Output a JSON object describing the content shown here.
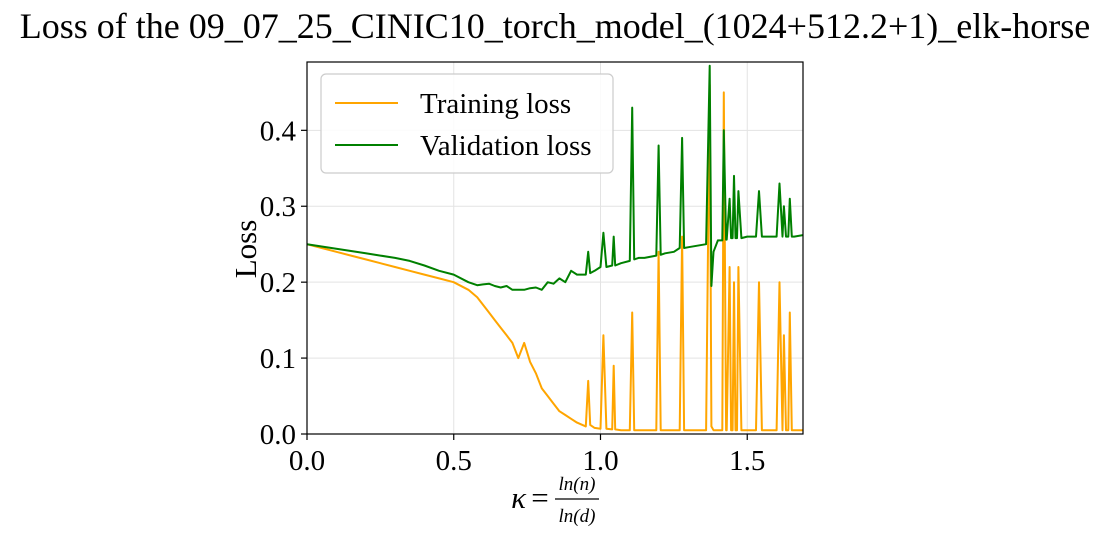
{
  "chart_data": {
    "type": "line",
    "title": "Loss of the 09_07_25_CINIC10_torch_model_(1024+512.2+1)_elk-horse",
    "xlabel": {
      "symbol": "κ",
      "equals": "=",
      "numerator": "ln(n)",
      "denominator": "ln(d)"
    },
    "ylabel": "Loss",
    "xlim": [
      0.0,
      1.69
    ],
    "ylim": [
      0.0,
      0.49
    ],
    "xticks": [
      "0.0",
      "0.5",
      "1.0",
      "1.5"
    ],
    "yticks": [
      "0.0",
      "0.1",
      "0.2",
      "0.3",
      "0.4"
    ],
    "grid": true,
    "legend_position": "top-left",
    "series": [
      {
        "name": "Training loss",
        "color": "#FFA500",
        "x": [
          0.0,
          0.05,
          0.1,
          0.15,
          0.2,
          0.25,
          0.3,
          0.35,
          0.4,
          0.45,
          0.5,
          0.55,
          0.58,
          0.6,
          0.62,
          0.64,
          0.66,
          0.68,
          0.7,
          0.72,
          0.74,
          0.76,
          0.78,
          0.8,
          0.82,
          0.84,
          0.86,
          0.88,
          0.9,
          0.92,
          0.95,
          0.958,
          0.965,
          0.98,
          1.0,
          1.01,
          1.02,
          1.04,
          1.045,
          1.05,
          1.07,
          1.1,
          1.108,
          1.115,
          1.13,
          1.15,
          1.19,
          1.198,
          1.205,
          1.22,
          1.25,
          1.27,
          1.278,
          1.285,
          1.3,
          1.33,
          1.36,
          1.372,
          1.378,
          1.385,
          1.4,
          1.415,
          1.42,
          1.428,
          1.43,
          1.44,
          1.445,
          1.45,
          1.455,
          1.46,
          1.465,
          1.47,
          1.48,
          1.5,
          1.53,
          1.54,
          1.55,
          1.57,
          1.6,
          1.61,
          1.62,
          1.625,
          1.632,
          1.64,
          1.645,
          1.652,
          1.66,
          1.69
        ],
        "y": [
          0.25,
          0.245,
          0.24,
          0.235,
          0.23,
          0.225,
          0.22,
          0.215,
          0.21,
          0.205,
          0.2,
          0.19,
          0.18,
          0.17,
          0.16,
          0.15,
          0.14,
          0.13,
          0.12,
          0.1,
          0.12,
          0.095,
          0.08,
          0.06,
          0.05,
          0.04,
          0.03,
          0.025,
          0.02,
          0.015,
          0.01,
          0.07,
          0.012,
          0.008,
          0.007,
          0.13,
          0.007,
          0.006,
          0.09,
          0.006,
          0.005,
          0.005,
          0.16,
          0.005,
          0.005,
          0.005,
          0.005,
          0.24,
          0.005,
          0.005,
          0.005,
          0.005,
          0.26,
          0.005,
          0.005,
          0.005,
          0.005,
          0.46,
          0.01,
          0.005,
          0.005,
          0.005,
          0.45,
          0.005,
          0.005,
          0.22,
          0.005,
          0.005,
          0.2,
          0.005,
          0.005,
          0.22,
          0.005,
          0.005,
          0.005,
          0.2,
          0.005,
          0.005,
          0.005,
          0.2,
          0.005,
          0.13,
          0.005,
          0.005,
          0.16,
          0.005,
          0.005,
          0.005
        ]
      },
      {
        "name": "Validation loss",
        "color": "#008000",
        "x": [
          0.0,
          0.05,
          0.1,
          0.15,
          0.2,
          0.25,
          0.3,
          0.35,
          0.4,
          0.45,
          0.5,
          0.55,
          0.58,
          0.6,
          0.62,
          0.64,
          0.66,
          0.68,
          0.7,
          0.72,
          0.74,
          0.76,
          0.78,
          0.8,
          0.82,
          0.84,
          0.86,
          0.88,
          0.9,
          0.92,
          0.95,
          0.958,
          0.965,
          0.98,
          1.0,
          1.01,
          1.02,
          1.04,
          1.045,
          1.05,
          1.07,
          1.1,
          1.108,
          1.115,
          1.13,
          1.15,
          1.19,
          1.198,
          1.205,
          1.22,
          1.25,
          1.27,
          1.278,
          1.285,
          1.3,
          1.33,
          1.36,
          1.372,
          1.378,
          1.385,
          1.4,
          1.415,
          1.42,
          1.428,
          1.43,
          1.44,
          1.445,
          1.45,
          1.455,
          1.46,
          1.465,
          1.47,
          1.48,
          1.5,
          1.53,
          1.54,
          1.55,
          1.57,
          1.6,
          1.61,
          1.62,
          1.625,
          1.632,
          1.64,
          1.645,
          1.652,
          1.66,
          1.69
        ],
        "y": [
          0.25,
          0.247,
          0.244,
          0.241,
          0.238,
          0.235,
          0.232,
          0.228,
          0.222,
          0.215,
          0.21,
          0.2,
          0.196,
          0.197,
          0.198,
          0.195,
          0.193,
          0.195,
          0.19,
          0.19,
          0.19,
          0.192,
          0.193,
          0.19,
          0.2,
          0.198,
          0.205,
          0.2,
          0.215,
          0.21,
          0.21,
          0.24,
          0.212,
          0.215,
          0.22,
          0.265,
          0.22,
          0.222,
          0.26,
          0.222,
          0.225,
          0.228,
          0.43,
          0.23,
          0.232,
          0.232,
          0.235,
          0.38,
          0.236,
          0.238,
          0.24,
          0.245,
          0.39,
          0.245,
          0.246,
          0.248,
          0.25,
          0.485,
          0.195,
          0.24,
          0.255,
          0.255,
          0.4,
          0.256,
          0.256,
          0.31,
          0.258,
          0.258,
          0.34,
          0.258,
          0.258,
          0.32,
          0.258,
          0.26,
          0.26,
          0.32,
          0.26,
          0.26,
          0.26,
          0.33,
          0.26,
          0.3,
          0.26,
          0.26,
          0.31,
          0.26,
          0.26,
          0.262
        ]
      }
    ]
  }
}
